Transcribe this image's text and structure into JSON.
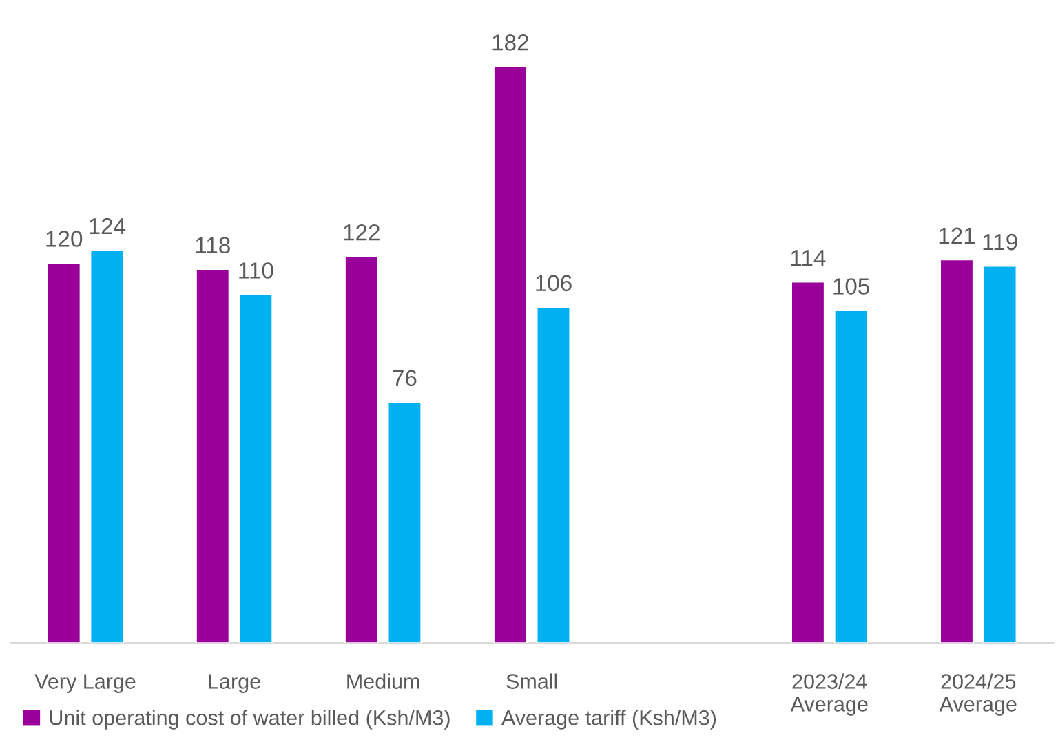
{
  "chart_data": {
    "type": "bar",
    "categories": [
      "Very Large",
      "Large",
      "Medium",
      "Small",
      null,
      "2023/24\nAverage",
      "2024/25\nAverage"
    ],
    "series": [
      {
        "name": "Unit operating cost of water billed (Ksh/M3)",
        "color": "#990099",
        "values": [
          120,
          118,
          122,
          182,
          null,
          114,
          121
        ]
      },
      {
        "name": "Average tariff (Ksh/M3)",
        "color": "#00b0f0",
        "values": [
          124,
          110,
          76,
          106,
          null,
          105,
          119
        ]
      }
    ],
    "data_labels": true,
    "legend": "bottom left",
    "grid": false
  }
}
